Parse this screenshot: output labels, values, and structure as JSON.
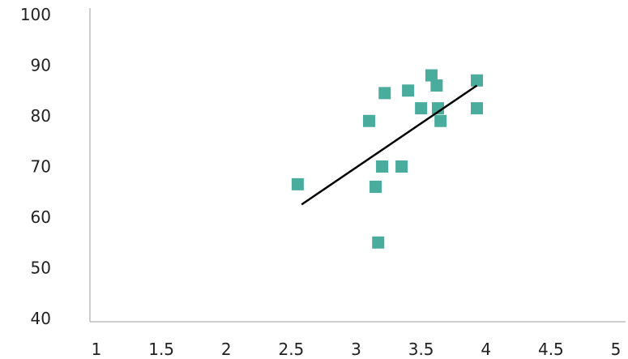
{
  "colors": {
    "marker": "#4aac9c",
    "trendline": "#000000",
    "axis": "#bdbdbd",
    "text": "#222222"
  },
  "chart_data": {
    "type": "scatter",
    "title": "",
    "xlabel": "",
    "ylabel": "",
    "xlim": [
      1,
      5
    ],
    "ylim": [
      40,
      100
    ],
    "x_ticks": [
      1,
      1.5,
      2,
      2.5,
      3,
      3.5,
      4,
      4.5,
      5
    ],
    "x_tick_labels": [
      "1",
      "1.5",
      "2",
      "2.5",
      "3",
      "3.5",
      "4",
      "4.5",
      "5"
    ],
    "y_ticks": [
      40,
      50,
      60,
      70,
      80,
      90,
      100
    ],
    "y_tick_labels": [
      "40",
      "50",
      "60",
      "70",
      "80",
      "90",
      "100"
    ],
    "grid": false,
    "marker": "square",
    "points": [
      {
        "x": 2.55,
        "y": 66.5
      },
      {
        "x": 3.1,
        "y": 79
      },
      {
        "x": 3.15,
        "y": 66
      },
      {
        "x": 3.17,
        "y": 55
      },
      {
        "x": 3.2,
        "y": 70
      },
      {
        "x": 3.22,
        "y": 84.5
      },
      {
        "x": 3.35,
        "y": 70
      },
      {
        "x": 3.4,
        "y": 85
      },
      {
        "x": 3.5,
        "y": 81.5
      },
      {
        "x": 3.58,
        "y": 88
      },
      {
        "x": 3.62,
        "y": 86
      },
      {
        "x": 3.63,
        "y": 81.5
      },
      {
        "x": 3.65,
        "y": 79
      },
      {
        "x": 3.93,
        "y": 87
      },
      {
        "x": 3.93,
        "y": 81.5
      }
    ],
    "trendline": {
      "x": [
        2.58,
        3.93
      ],
      "y": [
        62.5,
        86
      ]
    }
  }
}
